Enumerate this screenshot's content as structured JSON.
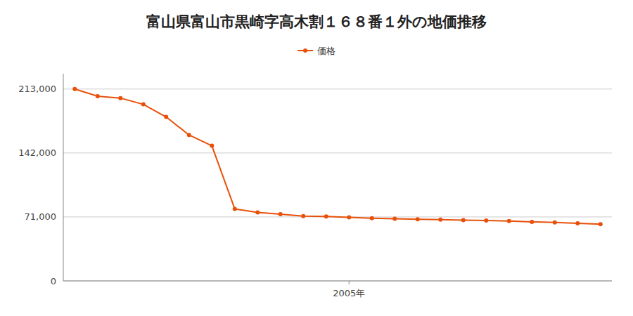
{
  "chart_data": {
    "type": "line",
    "title": "富山県富山市黒崎字高木割１６８番１外の地価推移",
    "x": [
      1993,
      1994,
      1995,
      1996,
      1997,
      1998,
      1999,
      2000,
      2001,
      2002,
      2003,
      2004,
      2005,
      2006,
      2007,
      2008,
      2009,
      2010,
      2011,
      2012,
      2013,
      2014,
      2015,
      2016
    ],
    "series": [
      {
        "name": "価格",
        "color": "#e8500a",
        "marker": "circle",
        "line_style": "solid",
        "values": [
          213000,
          205000,
          203000,
          196000,
          182000,
          162000,
          150000,
          80000,
          76000,
          74000,
          72000,
          71500,
          70500,
          69500,
          69000,
          68500,
          68000,
          67500,
          67000,
          66500,
          65500,
          65000,
          64000,
          63000
        ]
      }
    ],
    "xlim": [
      1992.5,
      2016.5
    ],
    "xticks": [
      {
        "value": 2005,
        "label": "2005年"
      }
    ],
    "ylim": [
      0,
      230000
    ],
    "yticks": [
      0,
      {
        "value": 71000,
        "label": "71,000"
      },
      {
        "value": 142000,
        "label": "142,000"
      },
      {
        "value": 213000,
        "label": "213,000"
      }
    ],
    "grid": true,
    "legend": "top"
  }
}
